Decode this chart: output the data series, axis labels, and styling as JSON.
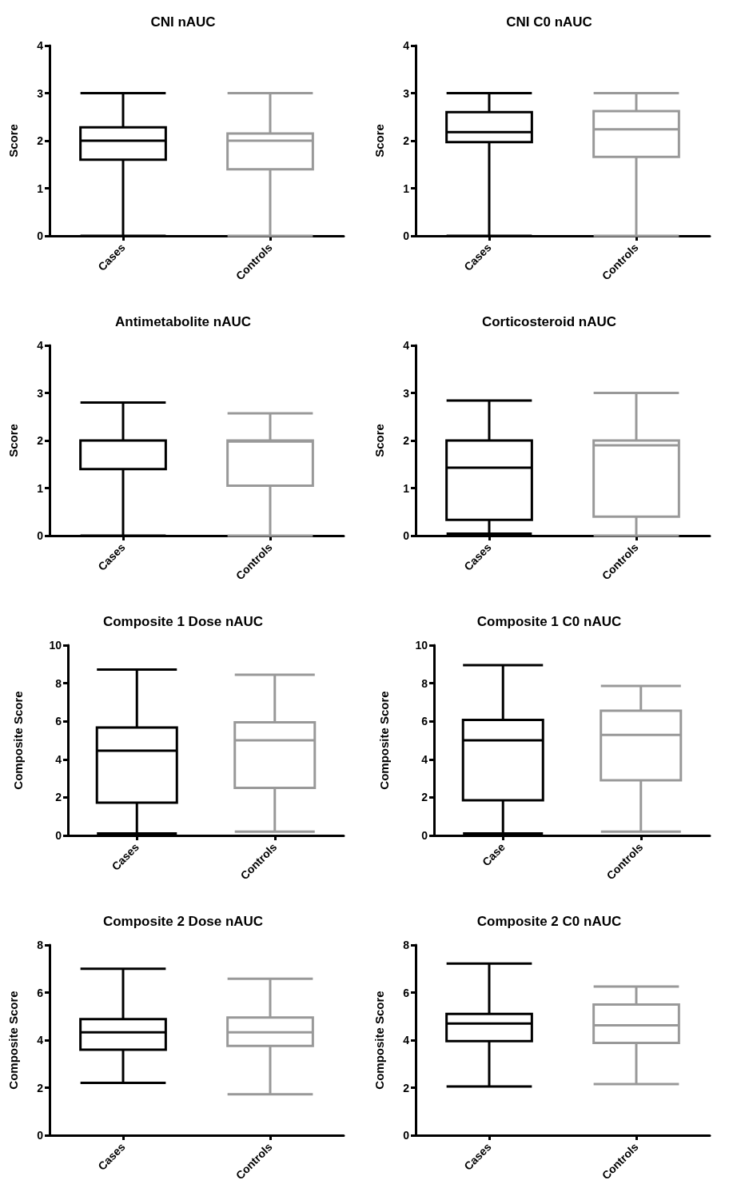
{
  "chart_data": [
    {
      "type": "box",
      "title": "CNI nAUC",
      "ylabel": "Score",
      "categories": [
        "Cases",
        "Controls"
      ],
      "colors": [
        "#000000",
        "#999999"
      ],
      "ylim": [
        0,
        4
      ],
      "yticks": [
        0,
        1,
        2,
        3,
        4
      ],
      "grid": false,
      "boxes": [
        {
          "low": 0,
          "q1": 1.6,
          "median": 2.0,
          "q3": 2.28,
          "high": 3.0
        },
        {
          "low": 0,
          "q1": 1.4,
          "median": 2.0,
          "q3": 2.15,
          "high": 3.0
        }
      ]
    },
    {
      "type": "box",
      "title": "CNI C0 nAUC",
      "ylabel": "Score",
      "categories": [
        "Cases",
        "Controls"
      ],
      "colors": [
        "#000000",
        "#999999"
      ],
      "ylim": [
        0,
        4
      ],
      "yticks": [
        0,
        1,
        2,
        3,
        4
      ],
      "grid": false,
      "boxes": [
        {
          "low": 0,
          "q1": 1.97,
          "median": 2.18,
          "q3": 2.6,
          "high": 3.0
        },
        {
          "low": 0,
          "q1": 1.66,
          "median": 2.24,
          "q3": 2.62,
          "high": 3.0
        }
      ]
    },
    {
      "type": "box",
      "title": "Antimetabolite nAUC",
      "ylabel": "Score",
      "categories": [
        "Cases",
        "Controls"
      ],
      "colors": [
        "#000000",
        "#999999"
      ],
      "ylim": [
        0,
        4
      ],
      "yticks": [
        0,
        1,
        2,
        3,
        4
      ],
      "grid": false,
      "boxes": [
        {
          "low": 0,
          "q1": 1.4,
          "median": 2.0,
          "q3": 2.0,
          "high": 2.8
        },
        {
          "low": 0,
          "q1": 1.05,
          "median": 1.98,
          "q3": 2.0,
          "high": 2.57
        }
      ]
    },
    {
      "type": "box",
      "title": "Corticosteroid nAUC",
      "ylabel": "Score",
      "categories": [
        "Cases",
        "Controls"
      ],
      "colors": [
        "#000000",
        "#999999"
      ],
      "ylim": [
        0,
        4
      ],
      "yticks": [
        0,
        1,
        2,
        3,
        4
      ],
      "grid": false,
      "boxes": [
        {
          "low": 0.04,
          "q1": 0.33,
          "median": 1.43,
          "q3": 2.0,
          "high": 2.84
        },
        {
          "low": 0,
          "q1": 0.4,
          "median": 1.9,
          "q3": 2.0,
          "high": 3.0
        }
      ]
    },
    {
      "type": "box",
      "title": "Composite 1 Dose nAUC",
      "ylabel": "Composite Score",
      "categories": [
        "Cases",
        "Controls"
      ],
      "colors": [
        "#000000",
        "#999999"
      ],
      "ylim": [
        0,
        10
      ],
      "yticks": [
        0,
        2,
        4,
        6,
        8,
        10
      ],
      "grid": false,
      "boxes": [
        {
          "low": 0.1,
          "q1": 1.72,
          "median": 4.45,
          "q3": 5.67,
          "high": 8.72
        },
        {
          "low": 0.2,
          "q1": 2.5,
          "median": 5.0,
          "q3": 5.95,
          "high": 8.45
        }
      ]
    },
    {
      "type": "box",
      "title": "Composite 1 C0 nAUC",
      "ylabel": "Composite Score",
      "categories": [
        "Case",
        "Controls"
      ],
      "colors": [
        "#000000",
        "#999999"
      ],
      "ylim": [
        0,
        10
      ],
      "yticks": [
        0,
        2,
        4,
        6,
        8,
        10
      ],
      "grid": false,
      "boxes": [
        {
          "low": 0.1,
          "q1": 1.85,
          "median": 5.0,
          "q3": 6.07,
          "high": 8.95
        },
        {
          "low": 0.2,
          "q1": 2.9,
          "median": 5.28,
          "q3": 6.55,
          "high": 7.86
        }
      ]
    },
    {
      "type": "box",
      "title": "Composite 2 Dose nAUC",
      "ylabel": "Composite Score",
      "categories": [
        "Cases",
        "Controls"
      ],
      "colors": [
        "#000000",
        "#999999"
      ],
      "ylim": [
        0,
        8
      ],
      "yticks": [
        0,
        2,
        4,
        6,
        8
      ],
      "grid": false,
      "boxes": [
        {
          "low": 2.2,
          "q1": 3.6,
          "median": 4.33,
          "q3": 4.88,
          "high": 7.0
        },
        {
          "low": 1.72,
          "q1": 3.76,
          "median": 4.33,
          "q3": 4.95,
          "high": 6.58
        }
      ]
    },
    {
      "type": "box",
      "title": "Composite 2 C0 nAUC",
      "ylabel": "Composite Score",
      "categories": [
        "Cases",
        "Controls"
      ],
      "colors": [
        "#000000",
        "#999999"
      ],
      "ylim": [
        0,
        8
      ],
      "yticks": [
        0,
        2,
        4,
        6,
        8
      ],
      "grid": false,
      "boxes": [
        {
          "low": 2.05,
          "q1": 3.96,
          "median": 4.7,
          "q3": 5.1,
          "high": 7.22
        },
        {
          "low": 2.15,
          "q1": 3.88,
          "median": 4.62,
          "q3": 5.5,
          "high": 6.25
        }
      ]
    }
  ]
}
